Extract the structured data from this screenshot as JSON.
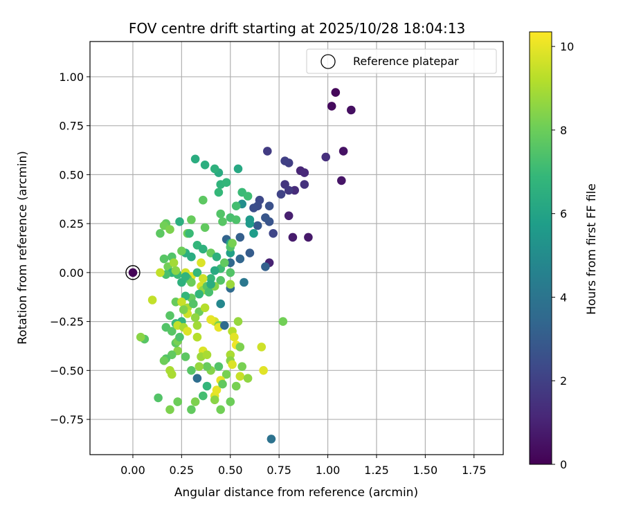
{
  "chart_data": {
    "type": "scatter",
    "title": "FOV centre drift starting at 2025/10/28 18:04:13",
    "xlabel": "Angular distance from reference (arcmin)",
    "ylabel": "Rotation from reference (arcmin)",
    "xlim": [
      -0.22,
      1.9
    ],
    "ylim": [
      -0.93,
      1.18
    ],
    "xticks": [
      0.0,
      0.25,
      0.5,
      0.75,
      1.0,
      1.25,
      1.5,
      1.75
    ],
    "xtick_labels": [
      "0.00",
      "0.25",
      "0.50",
      "0.75",
      "1.00",
      "1.25",
      "1.50",
      "1.75"
    ],
    "yticks": [
      -0.75,
      -0.5,
      -0.25,
      0.0,
      0.25,
      0.5,
      0.75,
      1.0
    ],
    "ytick_labels": [
      "−0.75",
      "−0.50",
      "−0.25",
      "0.00",
      "0.25",
      "0.50",
      "0.75",
      "1.00"
    ],
    "grid": true,
    "legend": {
      "position": "top-right",
      "entries": [
        "Reference platepar"
      ]
    },
    "reference_point": {
      "x": 0.0,
      "y": 0.0
    },
    "colorbar": {
      "label": "Hours from first FF file",
      "range": [
        0,
        10.35
      ],
      "ticks": [
        0,
        2,
        4,
        6,
        8,
        10
      ],
      "tick_labels": [
        "0",
        "2",
        "4",
        "6",
        "8",
        "10"
      ],
      "colormap": "viridis"
    },
    "colormap_stops": [
      "#440154",
      "#482878",
      "#3e4989",
      "#31688e",
      "#26828e",
      "#1f9e89",
      "#35b779",
      "#6ece58",
      "#b5de2b",
      "#fde725"
    ],
    "points": [
      [
        0.0,
        0.0,
        0.1
      ],
      [
        1.04,
        0.92,
        0.2
      ],
      [
        1.02,
        0.85,
        0.3
      ],
      [
        1.12,
        0.83,
        0.4
      ],
      [
        1.08,
        0.62,
        0.5
      ],
      [
        1.07,
        0.47,
        0.6
      ],
      [
        0.9,
        0.18,
        0.7
      ],
      [
        0.82,
        0.18,
        0.8
      ],
      [
        0.8,
        0.29,
        0.9
      ],
      [
        0.7,
        0.05,
        1.0
      ],
      [
        0.86,
        0.52,
        1.1
      ],
      [
        0.88,
        0.51,
        1.2
      ],
      [
        0.83,
        0.42,
        1.3
      ],
      [
        0.99,
        0.59,
        1.4
      ],
      [
        0.88,
        0.45,
        1.5
      ],
      [
        0.78,
        0.45,
        1.6
      ],
      [
        0.8,
        0.42,
        1.7
      ],
      [
        0.69,
        0.62,
        1.8
      ],
      [
        0.8,
        0.56,
        1.9
      ],
      [
        0.78,
        0.57,
        2.0
      ],
      [
        0.76,
        0.4,
        2.1
      ],
      [
        0.72,
        0.2,
        2.2
      ],
      [
        0.65,
        0.37,
        2.3
      ],
      [
        0.64,
        0.34,
        2.4
      ],
      [
        0.62,
        0.33,
        2.5
      ],
      [
        0.7,
        0.34,
        2.6
      ],
      [
        0.7,
        0.26,
        2.7
      ],
      [
        0.68,
        0.28,
        2.8
      ],
      [
        0.64,
        0.24,
        2.9
      ],
      [
        0.6,
        0.1,
        3.0
      ],
      [
        0.55,
        0.18,
        3.1
      ],
      [
        0.68,
        0.03,
        3.2
      ],
      [
        0.48,
        0.17,
        3.3
      ],
      [
        0.55,
        0.07,
        3.4
      ],
      [
        0.5,
        0.05,
        3.5
      ],
      [
        0.5,
        -0.08,
        3.6
      ],
      [
        0.33,
        -0.54,
        3.7
      ],
      [
        0.71,
        -0.85,
        3.9
      ],
      [
        0.57,
        -0.05,
        4.1
      ],
      [
        0.45,
        -0.16,
        4.8
      ],
      [
        0.56,
        0.35,
        5.1
      ],
      [
        0.6,
        0.25,
        5.6
      ],
      [
        0.62,
        0.2,
        5.7
      ],
      [
        0.6,
        0.27,
        5.6
      ],
      [
        0.5,
        0.1,
        5.9
      ],
      [
        0.5,
        0.15,
        6.0
      ],
      [
        0.54,
        0.53,
        6.2
      ],
      [
        0.44,
        0.51,
        6.3
      ],
      [
        0.32,
        0.58,
        6.4
      ],
      [
        0.37,
        0.55,
        6.5
      ],
      [
        0.42,
        0.53,
        6.6
      ],
      [
        0.45,
        0.45,
        6.7
      ],
      [
        0.48,
        0.46,
        6.8
      ],
      [
        0.44,
        0.41,
        6.9
      ],
      [
        0.56,
        0.41,
        7.0
      ],
      [
        0.59,
        0.39,
        7.1
      ],
      [
        0.53,
        0.34,
        7.2
      ],
      [
        0.5,
        0.28,
        7.3
      ],
      [
        0.53,
        0.27,
        7.4
      ],
      [
        0.45,
        0.3,
        7.5
      ],
      [
        0.46,
        0.26,
        7.6
      ],
      [
        0.36,
        0.37,
        7.7
      ],
      [
        0.37,
        0.23,
        7.8
      ],
      [
        0.3,
        0.27,
        7.9
      ],
      [
        0.28,
        0.2,
        8.0
      ],
      [
        0.24,
        0.26,
        6.5
      ],
      [
        0.17,
        0.25,
        7.8
      ],
      [
        0.16,
        0.24,
        8.1
      ],
      [
        0.14,
        0.2,
        7.7
      ],
      [
        0.19,
        0.22,
        8.3
      ],
      [
        0.29,
        0.2,
        7.0
      ],
      [
        0.33,
        0.14,
        6.8
      ],
      [
        0.36,
        0.12,
        6.6
      ],
      [
        0.4,
        0.1,
        7.9
      ],
      [
        0.43,
        0.08,
        6.6
      ],
      [
        0.5,
        0.13,
        7.5
      ],
      [
        0.51,
        0.15,
        8.2
      ],
      [
        0.45,
        0.02,
        7.1
      ],
      [
        0.42,
        0.01,
        6.3
      ],
      [
        0.4,
        -0.03,
        6.9
      ],
      [
        0.45,
        -0.04,
        7.5
      ],
      [
        0.5,
        -0.06,
        8.8
      ],
      [
        0.5,
        0.0,
        7.5
      ],
      [
        0.47,
        0.05,
        7.8
      ],
      [
        0.35,
        0.05,
        9.8
      ],
      [
        0.3,
        0.08,
        6.4
      ],
      [
        0.27,
        0.1,
        6.5
      ],
      [
        0.25,
        0.11,
        8.0
      ],
      [
        0.2,
        0.08,
        7.5
      ],
      [
        0.16,
        0.07,
        7.6
      ],
      [
        0.18,
        0.03,
        8.1
      ],
      [
        0.21,
        0.05,
        8.9
      ],
      [
        0.2,
        0.0,
        6.7
      ],
      [
        0.17,
        -0.01,
        7.3
      ],
      [
        0.14,
        0.0,
        9.4
      ],
      [
        0.23,
        -0.01,
        7.0
      ],
      [
        0.27,
        0.0,
        9.6
      ],
      [
        0.3,
        -0.02,
        9.9
      ],
      [
        0.28,
        -0.03,
        7.4
      ],
      [
        0.25,
        -0.05,
        6.6
      ],
      [
        0.35,
        -0.07,
        9.7
      ],
      [
        0.36,
        -0.09,
        8.6
      ],
      [
        0.38,
        -0.07,
        7.6
      ],
      [
        0.42,
        -0.07,
        8.4
      ],
      [
        0.39,
        -0.1,
        7.3
      ],
      [
        0.34,
        -0.11,
        6.8
      ],
      [
        0.3,
        -0.13,
        7.9
      ],
      [
        0.27,
        -0.12,
        6.8
      ],
      [
        0.22,
        -0.15,
        7.9
      ],
      [
        0.25,
        -0.15,
        9.5
      ],
      [
        0.28,
        -0.18,
        9.0
      ],
      [
        0.31,
        -0.16,
        7.5
      ],
      [
        0.34,
        -0.2,
        8.0
      ],
      [
        0.37,
        -0.18,
        9.2
      ],
      [
        0.25,
        -0.25,
        6.8
      ],
      [
        0.22,
        -0.26,
        7.0
      ],
      [
        0.19,
        -0.22,
        7.6
      ],
      [
        0.17,
        -0.28,
        7.5
      ],
      [
        0.2,
        -0.3,
        7.6
      ],
      [
        0.23,
        -0.27,
        9.4
      ],
      [
        0.26,
        -0.28,
        9.0
      ],
      [
        0.28,
        -0.3,
        9.8
      ],
      [
        0.33,
        -0.27,
        8.9
      ],
      [
        0.33,
        -0.33,
        9.2
      ],
      [
        0.36,
        -0.4,
        9.8
      ],
      [
        0.35,
        -0.43,
        8.8
      ],
      [
        0.38,
        -0.42,
        9.0
      ],
      [
        0.4,
        -0.24,
        9.4
      ],
      [
        0.42,
        -0.25,
        9.7
      ],
      [
        0.44,
        -0.27,
        8.2
      ],
      [
        0.44,
        -0.28,
        10.0
      ],
      [
        0.47,
        -0.27,
        3.6
      ],
      [
        0.51,
        -0.3,
        9.2
      ],
      [
        0.52,
        -0.33,
        9.9
      ],
      [
        0.53,
        -0.37,
        10.1
      ],
      [
        0.54,
        -0.25,
        8.7
      ],
      [
        0.55,
        -0.38,
        8.3
      ],
      [
        0.5,
        -0.42,
        9.0
      ],
      [
        0.5,
        -0.45,
        8.5
      ],
      [
        0.51,
        -0.47,
        9.8
      ],
      [
        0.55,
        -0.53,
        9.5
      ],
      [
        0.56,
        -0.48,
        8.2
      ],
      [
        0.48,
        -0.52,
        8.2
      ],
      [
        0.45,
        -0.55,
        10.0
      ],
      [
        0.44,
        -0.48,
        7.5
      ],
      [
        0.4,
        -0.5,
        8.4
      ],
      [
        0.38,
        -0.48,
        7.9
      ],
      [
        0.34,
        -0.48,
        8.7
      ],
      [
        0.3,
        -0.5,
        7.6
      ],
      [
        0.27,
        -0.43,
        7.7
      ],
      [
        0.23,
        -0.4,
        8.5
      ],
      [
        0.2,
        -0.42,
        7.8
      ],
      [
        0.17,
        -0.44,
        7.5
      ],
      [
        0.16,
        -0.45,
        8.0
      ],
      [
        0.19,
        -0.5,
        9.0
      ],
      [
        0.2,
        -0.52,
        9.0
      ],
      [
        0.22,
        -0.36,
        7.7
      ],
      [
        0.23,
        -0.35,
        8.2
      ],
      [
        0.24,
        -0.33,
        7.4
      ],
      [
        0.06,
        -0.34,
        7.6
      ],
      [
        0.04,
        -0.33,
        8.5
      ],
      [
        0.1,
        -0.14,
        9.4
      ],
      [
        0.13,
        -0.64,
        7.5
      ],
      [
        0.19,
        -0.7,
        8.3
      ],
      [
        0.23,
        -0.66,
        8.0
      ],
      [
        0.3,
        -0.7,
        7.8
      ],
      [
        0.32,
        -0.66,
        8.3
      ],
      [
        0.36,
        -0.63,
        7.2
      ],
      [
        0.38,
        -0.58,
        6.8
      ],
      [
        0.42,
        -0.63,
        9.9
      ],
      [
        0.43,
        -0.6,
        10.0
      ],
      [
        0.42,
        -0.65,
        8.5
      ],
      [
        0.46,
        -0.57,
        7.8
      ],
      [
        0.5,
        -0.66,
        8.0
      ],
      [
        0.45,
        -0.7,
        8.1
      ],
      [
        0.53,
        -0.58,
        8.2
      ],
      [
        0.59,
        -0.54,
        8.6
      ],
      [
        0.66,
        -0.38,
        9.6
      ],
      [
        0.67,
        -0.5,
        9.9
      ],
      [
        0.77,
        -0.25,
        8.1
      ],
      [
        0.4,
        -0.24,
        10.0
      ],
      [
        0.32,
        -0.23,
        8.6
      ],
      [
        0.28,
        -0.21,
        9.6
      ],
      [
        0.26,
        -0.19,
        8.3
      ],
      [
        0.3,
        -0.05,
        8.0
      ],
      [
        0.33,
        0.0,
        6.9
      ],
      [
        0.27,
        -0.02,
        6.7
      ],
      [
        0.22,
        0.01,
        8.5
      ],
      [
        0.36,
        -0.03,
        9.6
      ],
      [
        0.4,
        -0.06,
        6.4
      ]
    ]
  }
}
